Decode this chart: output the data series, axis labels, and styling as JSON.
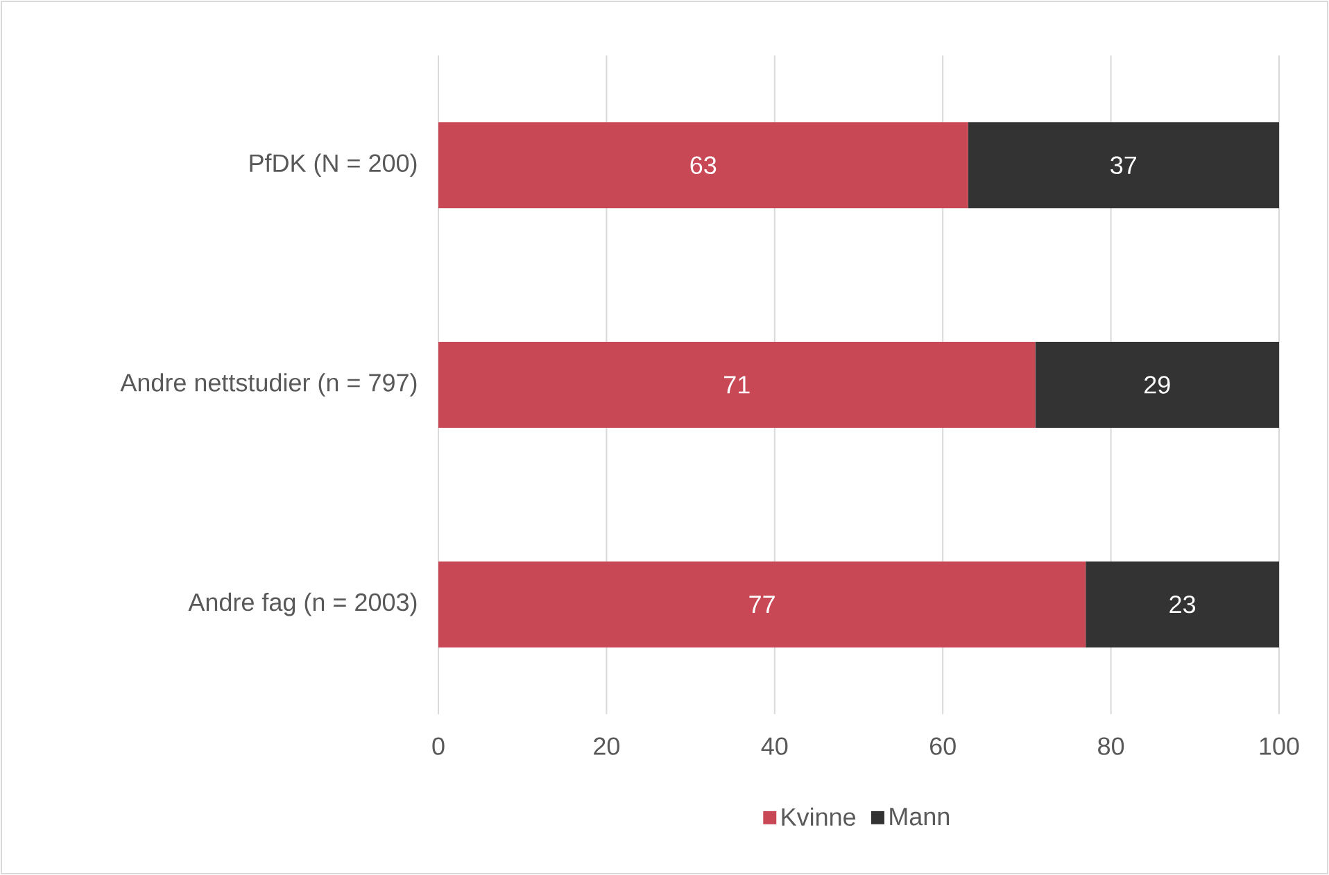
{
  "chart_data": {
    "type": "bar",
    "orientation": "horizontal",
    "stacked": true,
    "categories": [
      "PfDK (N = 200)",
      "Andre nettstudier (n = 797)",
      "Andre fag (n = 2003)"
    ],
    "series": [
      {
        "name": "Kvinne",
        "color": "#c84856",
        "values": [
          63,
          71,
          77
        ]
      },
      {
        "name": "Mann",
        "color": "#333333",
        "values": [
          37,
          29,
          23
        ]
      }
    ],
    "xlim": [
      0,
      100
    ],
    "xticks": [
      0,
      20,
      40,
      60,
      80,
      100
    ],
    "grid": "x",
    "legend": "bottom",
    "data_labels": true
  }
}
